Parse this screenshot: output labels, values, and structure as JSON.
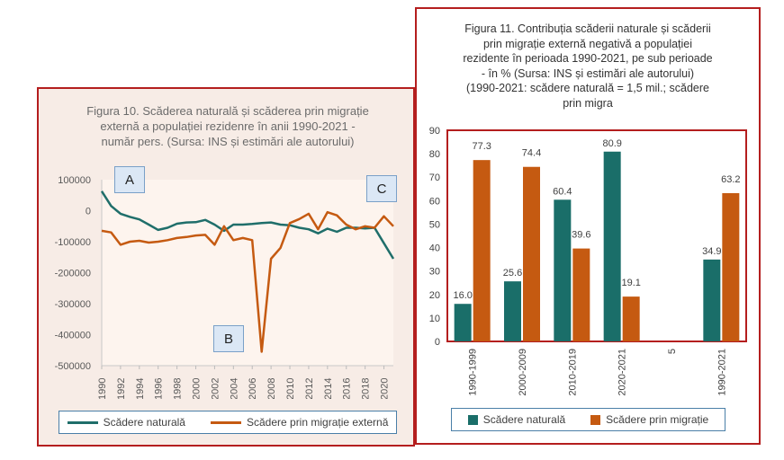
{
  "left": {
    "title": "Figura 10. Scăderea naturală și scăderea prin migrație\nexternă a populației rezidenre în anii 1990-2021 -\nnumăr pers. (Sursa: INS și estimări ale autorului)",
    "callouts": [
      "A",
      "B",
      "C"
    ]
  },
  "right": {
    "title": "Figura 11. Contribuția  scăderii naturale și scăderii\nprin migrație externă negativă a populației\nrezidente  în perioada 1990-2021, pe sub perioade\n- în % (Sursa: INS și estimări ale autorului)\n(1990-2021: scădere naturală = 1,5 mil.; scădere\nprin migra"
  },
  "chart_data": [
    {
      "type": "line",
      "title": "Figura 10. Scăderea naturală și scăderea prin migrație externă a populației rezidenre în anii 1990-2021 - număr pers. (Sursa: INS și estimări ale autorului)",
      "x": [
        1990,
        1991,
        1992,
        1993,
        1994,
        1995,
        1996,
        1997,
        1998,
        1999,
        2000,
        2001,
        2002,
        2003,
        2004,
        2005,
        2006,
        2007,
        2008,
        2009,
        2010,
        2011,
        2012,
        2013,
        2014,
        2015,
        2016,
        2017,
        2018,
        2019,
        2020,
        2021
      ],
      "x_ticks": [
        "1990",
        "1992",
        "1994",
        "1996",
        "1998",
        "2000",
        "2002",
        "2004",
        "2006",
        "2008",
        "2010",
        "2012",
        "2014",
        "2016",
        "2018",
        "2020"
      ],
      "ylim": [
        -500000,
        100000
      ],
      "y_ticks": [
        "100000",
        "0",
        "-100000",
        "-200000",
        "-300000",
        "-400000",
        "-500000"
      ],
      "series": [
        {
          "name": "Scădere naturală",
          "color": "#1f6e6a",
          "values": [
            63000,
            15000,
            -10000,
            -20000,
            -28000,
            -45000,
            -62000,
            -55000,
            -42000,
            -38000,
            -37000,
            -30000,
            -45000,
            -65000,
            -45000,
            -45000,
            -43000,
            -40000,
            -38000,
            -45000,
            -47000,
            -55000,
            -60000,
            -73000,
            -58000,
            -68000,
            -55000,
            -55000,
            -57000,
            -55000,
            -105000,
            -155000
          ]
        },
        {
          "name": "Scădere prin migrație externă",
          "color": "#c55a11",
          "values": [
            -65000,
            -70000,
            -110000,
            -100000,
            -97000,
            -103000,
            -100000,
            -95000,
            -88000,
            -85000,
            -80000,
            -78000,
            -110000,
            -50000,
            -95000,
            -88000,
            -95000,
            -455000,
            -155000,
            -120000,
            -40000,
            -27000,
            -10000,
            -60000,
            -5000,
            -15000,
            -45000,
            -60000,
            -50000,
            -55000,
            -18000,
            -50000
          ]
        }
      ]
    },
    {
      "type": "bar",
      "title": "Figura 11. Contribuția scăderii naturale și scăderii prin migrație externă negativă a populației rezidente în perioada 1990-2021, pe sub perioade - în % (Sursa: INS și estimări ale autorului) (1990-2021: scădere naturală = 1,5 mil.; scădere prin migra",
      "categories": [
        "1990-1999",
        "2000-2009",
        "2010-2019",
        "2020-2021",
        "5",
        "1990-2021"
      ],
      "ylim": [
        0,
        90
      ],
      "y_ticks": [
        "0",
        "10",
        "20",
        "30",
        "40",
        "50",
        "60",
        "70",
        "80",
        "90"
      ],
      "series": [
        {
          "name": "Scădere naturală",
          "color": "#1a6e69",
          "values": [
            16.0,
            25.6,
            60.4,
            80.9,
            null,
            34.9
          ],
          "labels": [
            "16.0",
            "25.6",
            "60.4",
            "80.9",
            "",
            "34.9"
          ]
        },
        {
          "name": "Scădere prin migrație",
          "color": "#c55a11",
          "values": [
            77.3,
            74.4,
            39.6,
            19.1,
            null,
            63.2
          ],
          "labels": [
            "77.3",
            "74.4",
            "39.6",
            "19.1",
            "",
            "63.2"
          ]
        }
      ]
    }
  ]
}
